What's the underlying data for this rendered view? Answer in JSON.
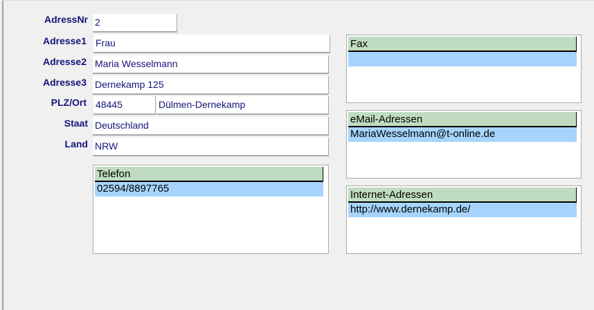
{
  "labels": {
    "adressnr": "AdressNr",
    "adresse1": "Adresse1",
    "adresse2": "Adresse2",
    "adresse3": "Adresse3",
    "plzort": "PLZ/Ort",
    "staat": "Staat",
    "land": "Land"
  },
  "fields": {
    "adressnr": "2",
    "adresse1": "Frau",
    "adresse2": "Maria Wesselmann",
    "adresse3": "Dernekamp 125",
    "plz": "48445",
    "ort": "Dülmen-Dernekamp",
    "staat": "Deutschland",
    "land": "NRW"
  },
  "lists": {
    "telefon": {
      "header": "Telefon",
      "items": [
        "02594/8897765"
      ]
    },
    "fax": {
      "header": "Fax",
      "items": [
        ""
      ]
    },
    "email": {
      "header": "eMail-Adressen",
      "items": [
        "MariaWesselmann@t-online.de"
      ]
    },
    "internet": {
      "header": "Internet-Adressen",
      "items": [
        "http://www.dernekamp.de/"
      ]
    }
  },
  "colors": {
    "label": "#14147a",
    "header_bg": "#c0dcc0",
    "selected_row": "#a6d4fc"
  }
}
